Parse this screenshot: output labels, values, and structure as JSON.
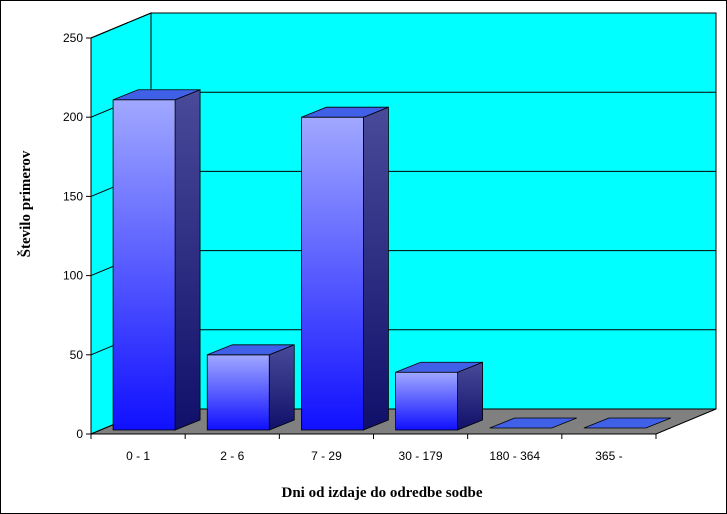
{
  "chart_data": {
    "type": "bar",
    "title": "",
    "xlabel": "Dni od izdaje do odredbe sodbe",
    "ylabel": "Število primerov",
    "ylim": [
      0,
      250
    ],
    "yticks": [
      0,
      50,
      100,
      150,
      200,
      250
    ],
    "ytick_labels": [
      "0",
      "50",
      "100",
      "150",
      "200",
      "250"
    ],
    "categories": [
      "0 - 1",
      "2 - 6",
      "7 - 29",
      "30 - 179",
      "180 - 364",
      "365 -"
    ],
    "values": [
      211,
      50,
      200,
      39,
      0,
      0
    ],
    "grid": true,
    "legend": "none",
    "style": "3d",
    "colors": {
      "wall": "#00ffff",
      "floor": "#808080",
      "bar_top_light": "#a0a8ff",
      "bar_bottom": "#1010ff",
      "bar_side_top": "#4a4a9a",
      "bar_side_bottom": "#10106a",
      "bar_cap": "#4060e8",
      "frame": "#000000"
    }
  }
}
